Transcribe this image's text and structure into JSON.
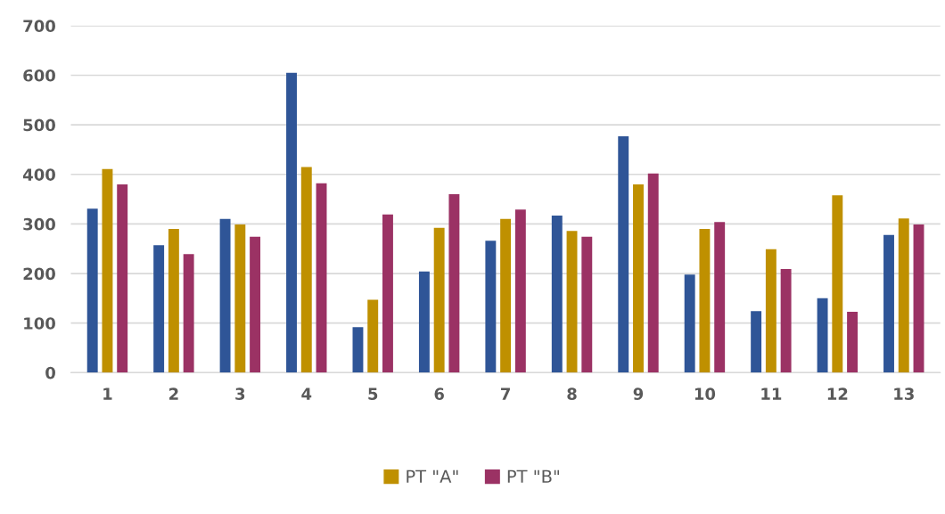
{
  "chart_data": {
    "type": "bar",
    "categories": [
      "1",
      "2",
      "3",
      "4",
      "5",
      "6",
      "7",
      "8",
      "9",
      "10",
      "11",
      "12",
      "13"
    ],
    "series": [
      {
        "color": "#2f5597",
        "values": [
          331,
          257,
          310,
          605,
          92,
          204,
          266,
          317,
          477,
          198,
          124,
          150,
          278
        ]
      },
      {
        "name": "PT \"A\"",
        "color": "#bf9000",
        "values": [
          411,
          290,
          299,
          415,
          147,
          292,
          310,
          286,
          380,
          290,
          249,
          358,
          311
        ]
      },
      {
        "name": "PT \"B\"",
        "color": "#9b3264",
        "values": [
          380,
          239,
          274,
          382,
          319,
          360,
          329,
          274,
          402,
          304,
          209,
          123,
          299
        ]
      }
    ],
    "ylim": [
      0,
      700
    ],
    "yticks": [
      0,
      100,
      200,
      300,
      400,
      500,
      600,
      700
    ],
    "grid": "y",
    "legend": "bottom"
  }
}
